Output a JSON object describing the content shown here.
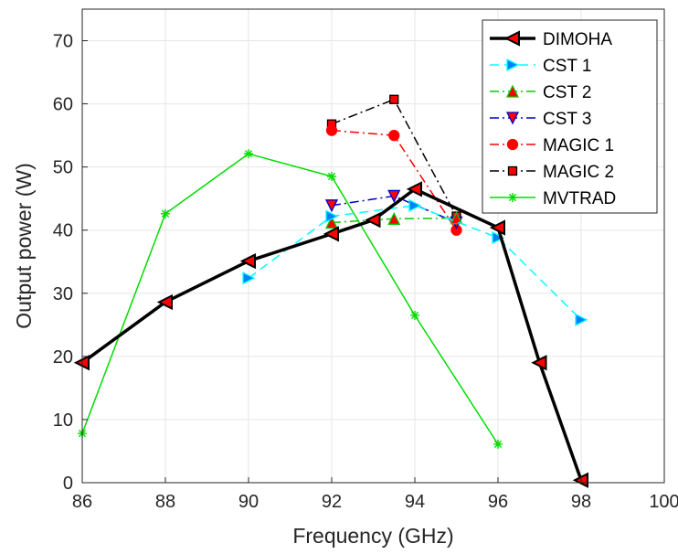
{
  "chart_data": {
    "type": "line",
    "title": "",
    "xlabel": "Frequency (GHz)",
    "ylabel": "Output power (W)",
    "xlim": [
      86,
      100
    ],
    "ylim": [
      0,
      75
    ],
    "xticks": [
      "86",
      "88",
      "90",
      "92",
      "94",
      "96",
      "98",
      "100"
    ],
    "yticks": [
      "0",
      "10",
      "20",
      "30",
      "40",
      "50",
      "60",
      "70"
    ],
    "grid": true,
    "legend_position": "top-right",
    "series": [
      {
        "name": "DIMOHA",
        "color": "#000000",
        "dash": "solid",
        "marker": "triangle-left",
        "marker_fill": "#ff0000",
        "bold": true,
        "x": [
          86,
          88,
          90,
          92,
          93,
          94,
          96,
          97,
          98
        ],
        "y": [
          19,
          28.6,
          35.1,
          39.4,
          41.6,
          46.5,
          40.4,
          19,
          0.4
        ]
      },
      {
        "name": "CST 1",
        "color": "#00ffff",
        "dash": "dashed",
        "marker": "triangle-right",
        "marker_fill": "#0080ff",
        "x": [
          90,
          92,
          94,
          96,
          98
        ],
        "y": [
          32.4,
          42.2,
          43.9,
          38.8,
          25.8
        ]
      },
      {
        "name": "CST 2",
        "color": "#00cc00",
        "dash": "dashdot",
        "marker": "triangle-up",
        "marker_fill": "#ff0000",
        "x": [
          92,
          93.5,
          95
        ],
        "y": [
          41.2,
          41.8,
          41.9
        ]
      },
      {
        "name": "CST 3",
        "color": "#0000cc",
        "dash": "dashdot",
        "marker": "triangle-down",
        "marker_fill": "#ff0000",
        "x": [
          92,
          93.5,
          95
        ],
        "y": [
          43.9,
          45.4,
          41.2
        ]
      },
      {
        "name": "MAGIC 1",
        "color": "#ff0000",
        "dash": "dashdot",
        "marker": "circle",
        "marker_fill": "#ff0000",
        "x": [
          92,
          93.5,
          95
        ],
        "y": [
          55.8,
          55,
          40
        ]
      },
      {
        "name": "MAGIC 2",
        "color": "#000000",
        "dash": "dashdot",
        "marker": "square",
        "marker_fill": "#ff0000",
        "x": [
          92,
          93.5,
          95
        ],
        "y": [
          56.8,
          60.7,
          42.2
        ]
      },
      {
        "name": "MVTRAD",
        "color": "#00dd00",
        "dash": "solid",
        "marker": "asterisk",
        "marker_fill": "#00dd00",
        "x": [
          86,
          88,
          90,
          92,
          94,
          96
        ],
        "y": [
          7.8,
          42.6,
          52.1,
          48.5,
          26.5,
          6.1
        ]
      }
    ]
  }
}
